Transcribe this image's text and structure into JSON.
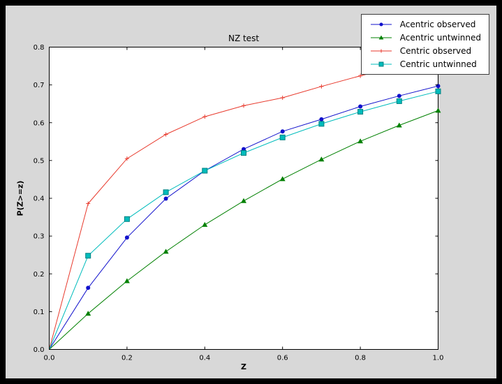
{
  "window": {
    "outer_bg": "#000000",
    "figure_bg": "#d8d8d8"
  },
  "chart_data": {
    "type": "line",
    "title": "NZ test",
    "xlabel": "Z",
    "ylabel": "P(Z>=z)",
    "xlim": [
      0.0,
      1.0
    ],
    "ylim": [
      0.0,
      0.8
    ],
    "grid": false,
    "plot_bg": "#ffffff",
    "legend_position": "upper right",
    "xticks": {
      "values": [
        0.0,
        0.2,
        0.4,
        0.6,
        0.8,
        1.0
      ],
      "labels": [
        "0.0",
        "0.2",
        "0.4",
        "0.6",
        "0.8",
        "1.0"
      ]
    },
    "yticks": {
      "values": [
        0.0,
        0.1,
        0.2,
        0.3,
        0.4,
        0.5,
        0.6,
        0.7,
        0.8
      ],
      "labels": [
        "0.0",
        "0.1",
        "0.2",
        "0.3",
        "0.4",
        "0.5",
        "0.6",
        "0.7",
        "0.8"
      ]
    },
    "x": [
      0.0,
      0.1,
      0.2,
      0.3,
      0.4,
      0.5,
      0.6,
      0.7,
      0.8,
      0.9,
      1.0
    ],
    "series": [
      {
        "name": "Acentric observed",
        "color": "#1111cc",
        "marker": "circle",
        "values": [
          0.0,
          0.163,
          0.296,
          0.399,
          0.473,
          0.53,
          0.577,
          0.609,
          0.643,
          0.671,
          0.697
        ]
      },
      {
        "name": "Acentric untwinned",
        "color": "#008000",
        "marker": "triangle",
        "values": [
          0.0,
          0.095,
          0.181,
          0.259,
          0.33,
          0.393,
          0.451,
          0.503,
          0.551,
          0.593,
          0.632
        ]
      },
      {
        "name": "Centric observed",
        "color": "#e83a2d",
        "marker": "plus",
        "values": [
          0.0,
          0.386,
          0.505,
          0.569,
          0.616,
          0.645,
          0.666,
          0.696,
          0.724,
          0.75,
          0.776
        ]
      },
      {
        "name": "Centric untwinned",
        "color": "#00bcbc",
        "marker": "square",
        "values": [
          0.0,
          0.248,
          0.345,
          0.416,
          0.473,
          0.52,
          0.561,
          0.597,
          0.629,
          0.657,
          0.683
        ]
      }
    ]
  }
}
